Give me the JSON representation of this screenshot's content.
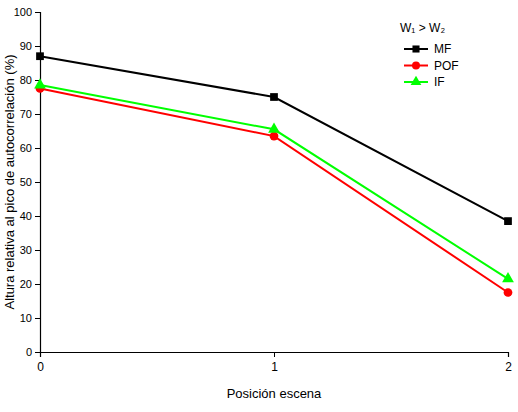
{
  "chart_data": {
    "type": "line",
    "x_label": "Posición escena",
    "y_label": "Altura relativa al pico de autocorrelación (%)",
    "legend_title": "W₁ > W₂",
    "x": [
      0,
      1,
      2
    ],
    "series": [
      {
        "name": "MF",
        "color": "#000000",
        "marker": "square",
        "values": [
          87,
          75,
          38.5
        ]
      },
      {
        "name": "POF",
        "color": "#ff0000",
        "marker": "circle",
        "values": [
          77.5,
          63.5,
          17.5
        ]
      },
      {
        "name": "IF",
        "color": "#00ff00",
        "marker": "triangle",
        "values": [
          78.5,
          65.5,
          21.5
        ]
      }
    ],
    "xlim": [
      0,
      2
    ],
    "xticks": [
      0,
      1,
      2
    ],
    "ylim": [
      0,
      100
    ],
    "yticks": [
      0,
      10,
      20,
      30,
      40,
      50,
      60,
      70,
      80,
      90,
      100
    ],
    "legend": "top-right",
    "grid": false
  }
}
